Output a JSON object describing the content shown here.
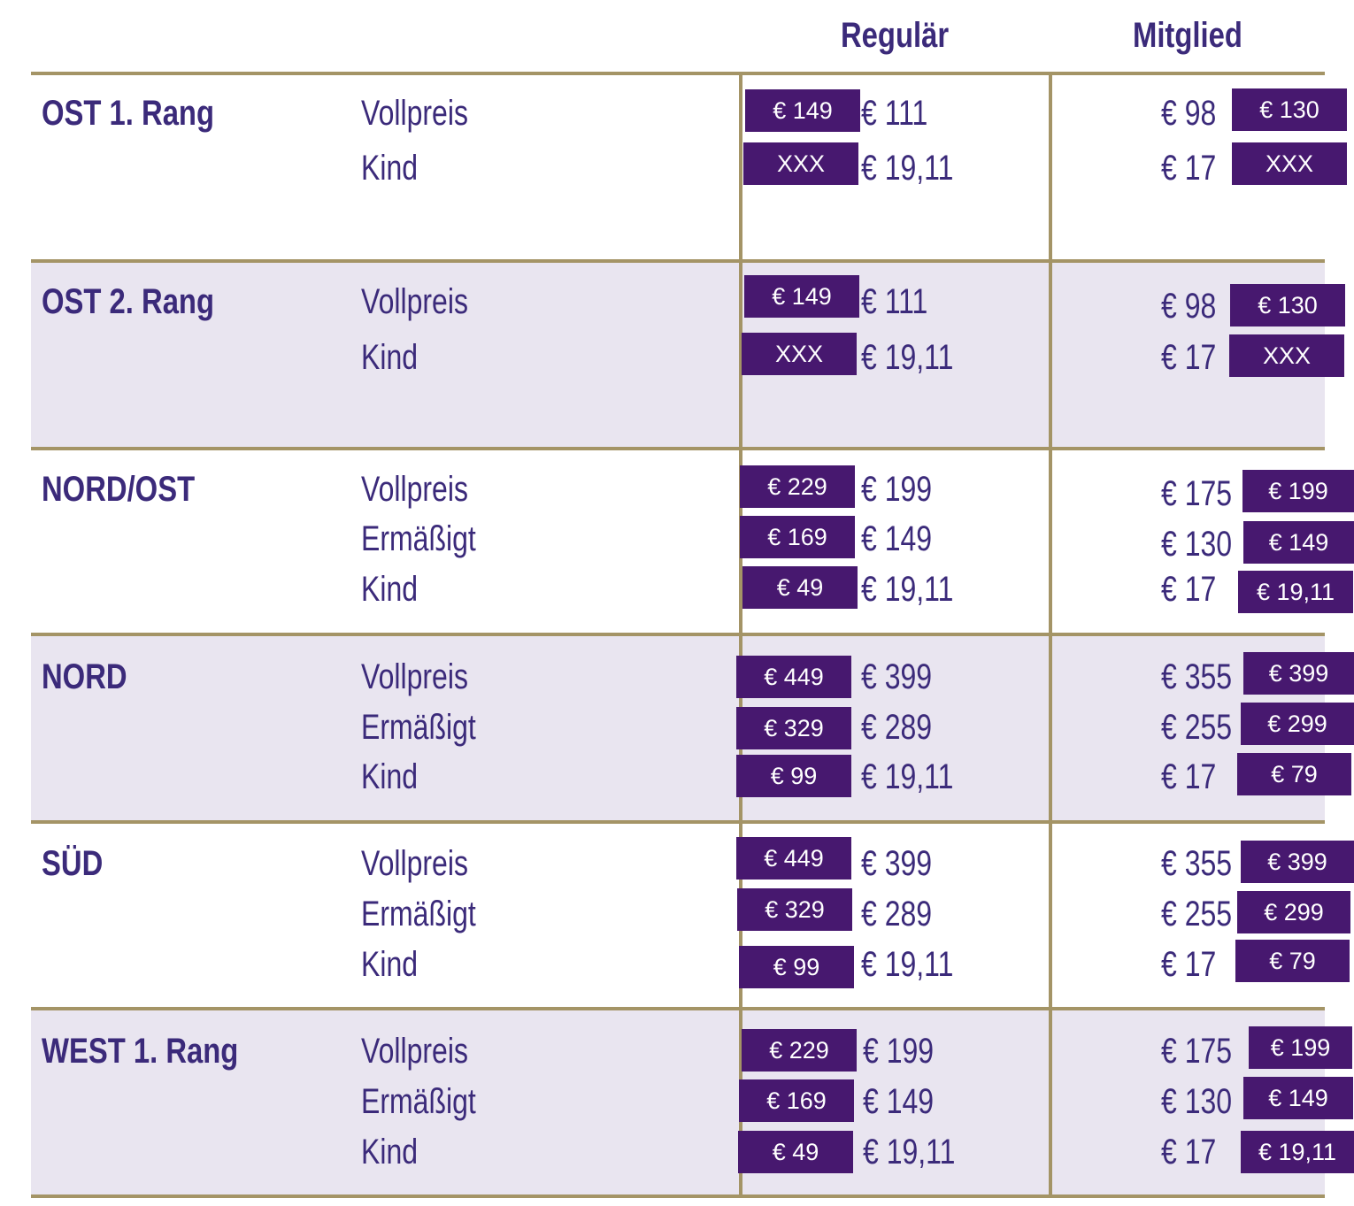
{
  "header": {
    "regular_label": "Regulär",
    "member_label": "Mitglied"
  },
  "sections": [
    {
      "zone": "OST 1. Rang",
      "rows": [
        {
          "category": "Vollpreis",
          "reg_old": "€ 149",
          "reg_new": "€ 111",
          "mem_new": "€ 98",
          "mem_old": "€ 130"
        },
        {
          "category": "Kind",
          "reg_old": "XXX",
          "reg_new": "€ 19,11",
          "mem_new": "€ 17",
          "mem_old": "XXX"
        }
      ]
    },
    {
      "zone": "OST 2. Rang",
      "rows": [
        {
          "category": "Vollpreis",
          "reg_old": "€ 149",
          "reg_new": "€ 111",
          "mem_new": "€ 98",
          "mem_old": "€ 130"
        },
        {
          "category": "Kind",
          "reg_old": "XXX",
          "reg_new": "€ 19,11",
          "mem_new": "€ 17",
          "mem_old": "XXX"
        }
      ]
    },
    {
      "zone": "NORD/OST",
      "rows": [
        {
          "category": "Vollpreis",
          "reg_old": "€ 229",
          "reg_new": "€ 199",
          "mem_new": "€ 175",
          "mem_old": "€ 199"
        },
        {
          "category": "Ermäßigt",
          "reg_old": "€ 169",
          "reg_new": "€ 149",
          "mem_new": "€ 130",
          "mem_old": "€ 149"
        },
        {
          "category": "Kind",
          "reg_old": "€ 49",
          "reg_new": "€ 19,11",
          "mem_new": "€ 17",
          "mem_old": "€ 19,11"
        }
      ]
    },
    {
      "zone": "NORD",
      "rows": [
        {
          "category": "Vollpreis",
          "reg_old": "€ 449",
          "reg_new": "€ 399",
          "mem_new": "€ 355",
          "mem_old": "€ 399"
        },
        {
          "category": "Ermäßigt",
          "reg_old": "€ 329",
          "reg_new": "€ 289",
          "mem_new": "€ 255",
          "mem_old": "€ 299"
        },
        {
          "category": "Kind",
          "reg_old": "€ 99",
          "reg_new": "€ 19,11",
          "mem_new": "€ 17",
          "mem_old": "€ 79"
        }
      ]
    },
    {
      "zone": "SÜD",
      "rows": [
        {
          "category": "Vollpreis",
          "reg_old": "€ 449",
          "reg_new": "€ 399",
          "mem_new": "€ 355",
          "mem_old": "€ 399"
        },
        {
          "category": "Ermäßigt",
          "reg_old": "€ 329",
          "reg_new": "€ 289",
          "mem_new": "€ 255",
          "mem_old": "€ 299"
        },
        {
          "category": "Kind",
          "reg_old": "€ 99",
          "reg_new": "€ 19,11",
          "mem_new": "€ 17",
          "mem_old": "€ 79"
        }
      ]
    },
    {
      "zone": "WEST 1. Rang",
      "rows": [
        {
          "category": "Vollpreis",
          "reg_old": "€ 229",
          "reg_new": "€ 199",
          "mem_new": "€ 175",
          "mem_old": "€ 199"
        },
        {
          "category": "Ermäßigt",
          "reg_old": "€ 169",
          "reg_new": "€ 149",
          "mem_new": "€ 130",
          "mem_old": "€ 149"
        },
        {
          "category": "Kind",
          "reg_old": "€ 49",
          "reg_new": "€ 19,11",
          "mem_new": "€ 17",
          "mem_old": "€ 19,11"
        }
      ]
    }
  ],
  "colors": {
    "accent_purple": "#47186f",
    "text_purple": "#3b2a7a",
    "rule_gold": "#a49466",
    "band_lavender": "#e9e5f0"
  }
}
